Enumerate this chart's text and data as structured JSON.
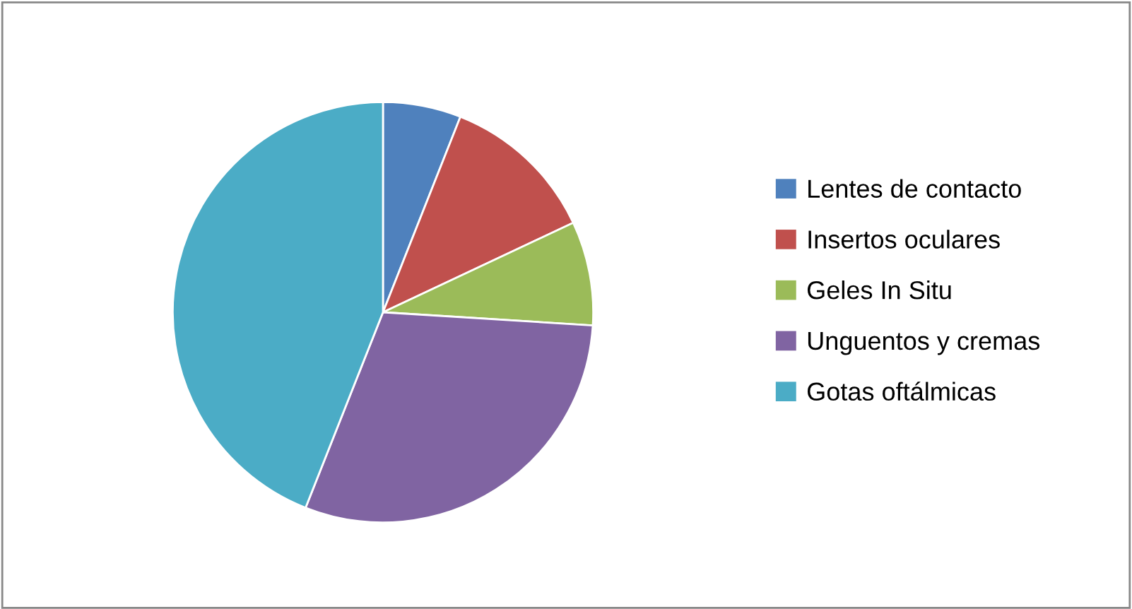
{
  "chart_data": {
    "type": "pie",
    "categories": [
      "Lentes de contacto",
      "Insertos oculares",
      "Geles In Situ",
      "Unguentos y cremas",
      "Gotas oftálmicas"
    ],
    "values": [
      6,
      12,
      8,
      30,
      44
    ],
    "colors": [
      "#4f81bd",
      "#c0504d",
      "#9bbb59",
      "#8064a2",
      "#4bacc6"
    ],
    "legend": "right"
  }
}
